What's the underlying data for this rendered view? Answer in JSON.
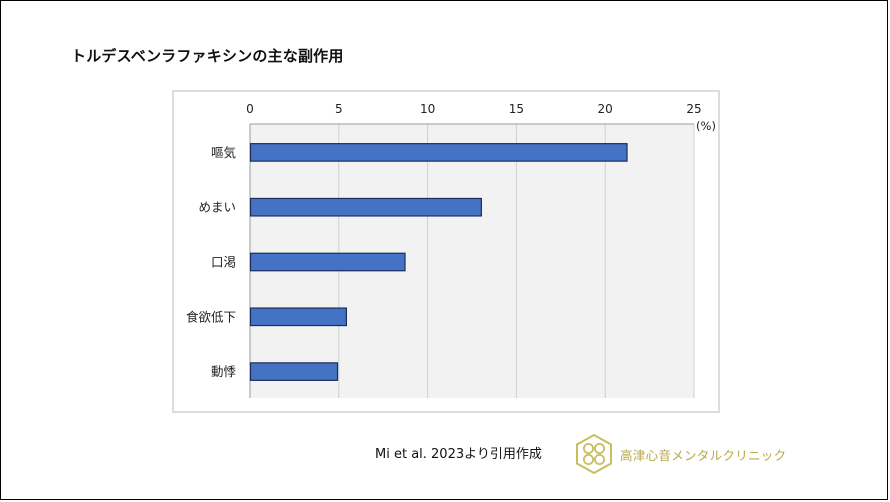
{
  "slide": {
    "title": "トルデスベンラファキシンの主な副作用",
    "citation": "Mi et al. 2023より引用作成",
    "clinic_name": "高津心音メンタルクリニック",
    "logo_color": "#c9bd62",
    "logo_icon": "clover-logo-icon"
  },
  "chart_data": {
    "type": "bar",
    "orientation": "horizontal",
    "title": "",
    "categories": [
      "嘔気",
      "めまい",
      "口渇",
      "食欲低下",
      "動悸"
    ],
    "values": [
      21.2,
      13.0,
      8.7,
      5.4,
      4.9
    ],
    "xlim": [
      0,
      25
    ],
    "xticks": [
      "0",
      "5",
      "10",
      "15",
      "20",
      "25"
    ],
    "unit": "(%)",
    "axis_position": "top",
    "grid": true,
    "bar_color": "#4472c4",
    "bar_edge_color": "#1f2d5a",
    "plot_bg": "#f2f2f2",
    "grid_color": "#d0d0d0"
  }
}
